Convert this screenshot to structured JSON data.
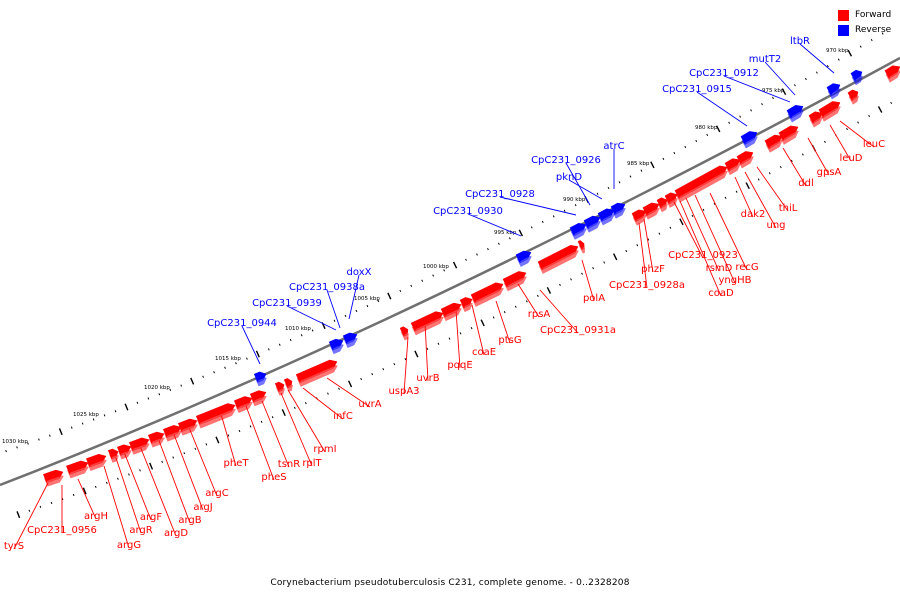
{
  "colors": {
    "forward": "#ff0000",
    "reverse": "#0000ff",
    "backbone": "#707070"
  },
  "legend": {
    "forward_label": "Forward",
    "reverse_label": "Reverse"
  },
  "caption": "Corynebacterium pseudotuberculosis C231, complete genome. - 0..2328208",
  "scale_labels": [
    "970 kbp",
    "975 kbp",
    "980 kbp",
    "985 kbp",
    "990 kbp",
    "995 kbp",
    "1000 kbp",
    "1005 kbp",
    "1010 kbp",
    "1015 kbp",
    "1020 kbp",
    "1025 kbp",
    "1030 kbp"
  ],
  "reverse_genes": [
    "ltbR",
    "mutT2",
    "CpC231_0912",
    "CpC231_0915",
    "atrC",
    "pknD",
    "CpC231_0926",
    "CpC231_0928",
    "CpC231_0930",
    "doxX",
    "CpC231_0938a",
    "CpC231_0939",
    "CpC231_0944"
  ],
  "forward_genes": [
    "leuC",
    "leuD",
    "gpsA",
    "ddl",
    "thiL",
    "ung",
    "dak2",
    "recG",
    "yngHB",
    "rsmD",
    "coaD",
    "CpC231_0923",
    "phzF",
    "CpC231_0928a",
    "polA",
    "rpsA",
    "CpC231_0931a",
    "ptsG",
    "coaE",
    "pqqE",
    "uvrB",
    "uspA3",
    "uvrA",
    "infC",
    "rpmI",
    "rplT",
    "tsnR",
    "pheS",
    "pheT",
    "argC",
    "argJ",
    "argB",
    "argD",
    "argF",
    "argR",
    "argG",
    "argH",
    "CpC231_0956",
    "tyrS"
  ]
}
